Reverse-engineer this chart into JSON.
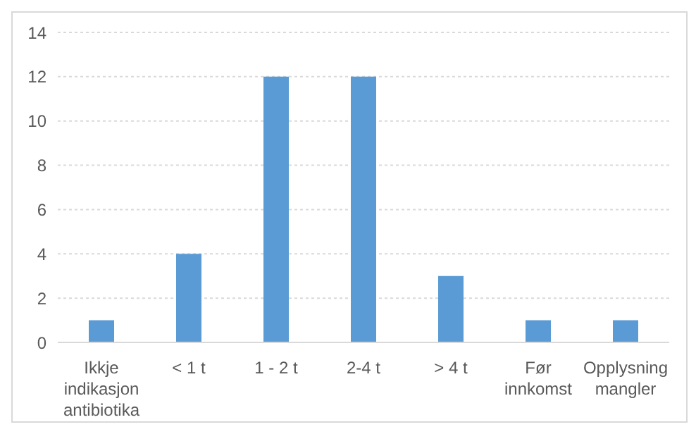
{
  "chart_data": {
    "type": "bar",
    "categories": [
      "Ikkje indikasjon antibiotika",
      "< 1 t",
      "1 - 2 t",
      "2-4 t",
      "> 4 t",
      "Før innkomst",
      "Opplysning mangler"
    ],
    "values": [
      1,
      4,
      12,
      12,
      3,
      1,
      1
    ],
    "color": "#5b9bd5",
    "ylim": [
      0,
      14
    ],
    "yticks": [
      0,
      2,
      4,
      6,
      8,
      10,
      12,
      14
    ],
    "grid": "y"
  }
}
